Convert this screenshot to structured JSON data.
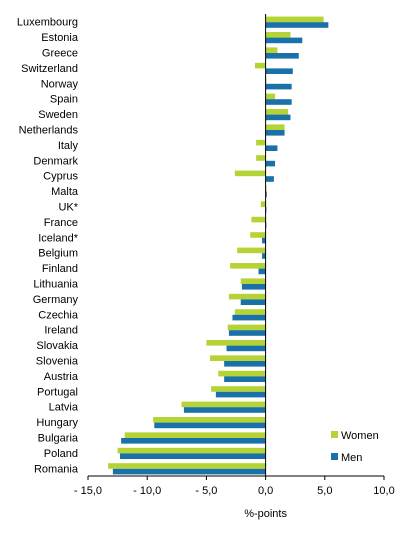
{
  "chart_data": {
    "type": "bar",
    "orientation": "horizontal",
    "categories": [
      "Luxembourg",
      "Estonia",
      "Greece",
      "Switzerland",
      "Norway",
      "Spain",
      "Sweden",
      "Netherlands",
      "Italy",
      "Denmark",
      "Cyprus",
      "Malta",
      "UK*",
      "France",
      "Iceland*",
      "Belgium",
      "Finland",
      "Lithuania",
      "Germany",
      "Czechia",
      "Ireland",
      "Slovakia",
      "Slovenia",
      "Austria",
      "Portugal",
      "Latvia",
      "Hungary",
      "Bulgaria",
      "Poland",
      "Romania"
    ],
    "series": [
      {
        "name": "Women",
        "color": "#b5d334",
        "values": [
          4.9,
          2.1,
          1.0,
          -0.9,
          0.0,
          0.8,
          1.9,
          1.6,
          -0.8,
          -0.8,
          -2.6,
          0.0,
          -0.4,
          -1.2,
          -1.3,
          -2.4,
          -3.0,
          -2.1,
          -3.1,
          -2.6,
          -3.2,
          -5.0,
          -4.7,
          -4.0,
          -4.6,
          -7.1,
          -9.5,
          -11.9,
          -12.5,
          -13.3
        ]
      },
      {
        "name": "Men",
        "color": "#1a70a8",
        "values": [
          5.3,
          3.1,
          2.8,
          2.3,
          2.2,
          2.2,
          2.1,
          1.6,
          1.0,
          0.8,
          0.7,
          0.1,
          0.0,
          0.0,
          -0.3,
          -0.3,
          -0.6,
          -2.0,
          -2.1,
          -2.8,
          -3.1,
          -3.3,
          -3.5,
          -3.5,
          -4.2,
          -6.9,
          -9.4,
          -12.2,
          -12.3,
          -12.9
        ]
      }
    ],
    "xlabel": "%-points",
    "xlim": [
      -15,
      10
    ],
    "xticks": [
      -15,
      -10,
      -5,
      0,
      5,
      10
    ],
    "tick_labels": [
      "- 15,0",
      "- 10,0",
      "- 5,0",
      "0,0",
      "5,0",
      "10,0"
    ],
    "grid": false,
    "legend_position": "bottom-right"
  }
}
